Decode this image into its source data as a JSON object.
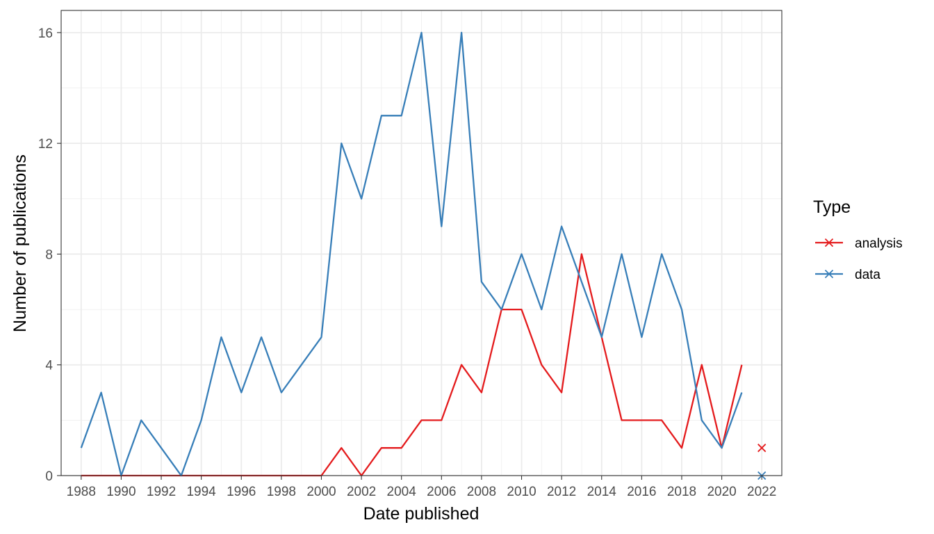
{
  "chart_data": {
    "type": "line",
    "xlabel": "Date published",
    "ylabel": "Number of publications",
    "xlim": [
      1987,
      2023
    ],
    "ylim": [
      0,
      16.8
    ],
    "x_ticks": [
      1988,
      1990,
      1992,
      1994,
      1996,
      1998,
      2000,
      2002,
      2004,
      2006,
      2008,
      2010,
      2012,
      2014,
      2016,
      2018,
      2020,
      2022
    ],
    "y_ticks": [
      0,
      4,
      8,
      12,
      16
    ],
    "grid": true,
    "legend": {
      "title": "Type",
      "placement": "right"
    },
    "series": [
      {
        "name": "analysis",
        "color": "#E41A1C",
        "marker": "x",
        "points": [
          [
            1988,
            0
          ],
          [
            1989,
            0
          ],
          [
            1990,
            0
          ],
          [
            1991,
            0
          ],
          [
            1992,
            0
          ],
          [
            1993,
            0
          ],
          [
            1994,
            0
          ],
          [
            1995,
            0
          ],
          [
            1996,
            0
          ],
          [
            1997,
            0
          ],
          [
            1998,
            0
          ],
          [
            1999,
            0
          ],
          [
            2000,
            0
          ],
          [
            2001,
            1
          ],
          [
            2002,
            0
          ],
          [
            2003,
            1
          ],
          [
            2004,
            1
          ],
          [
            2005,
            2
          ],
          [
            2006,
            2
          ],
          [
            2007,
            4
          ],
          [
            2008,
            3
          ],
          [
            2009,
            6
          ],
          [
            2010,
            6
          ],
          [
            2011,
            4
          ],
          [
            2012,
            3
          ],
          [
            2013,
            8
          ],
          [
            2014,
            5
          ],
          [
            2015,
            2
          ],
          [
            2016,
            2
          ],
          [
            2017,
            2
          ],
          [
            2018,
            1
          ],
          [
            2019,
            4
          ],
          [
            2020,
            1
          ],
          [
            2021,
            4
          ]
        ],
        "isolated_points": [
          [
            2022,
            1
          ]
        ]
      },
      {
        "name": "data",
        "color": "#377EB8",
        "marker": "x",
        "points": [
          [
            1988,
            1
          ],
          [
            1989,
            3
          ],
          [
            1990,
            0
          ],
          [
            1991,
            2
          ],
          [
            1992,
            1
          ],
          [
            1993,
            0
          ],
          [
            1994,
            2
          ],
          [
            1995,
            5
          ],
          [
            1996,
            3
          ],
          [
            1997,
            5
          ],
          [
            1998,
            3
          ],
          [
            1999,
            4
          ],
          [
            2000,
            5
          ],
          [
            2001,
            12
          ],
          [
            2002,
            10
          ],
          [
            2003,
            13
          ],
          [
            2004,
            13
          ],
          [
            2005,
            16
          ],
          [
            2006,
            9
          ],
          [
            2007,
            16
          ],
          [
            2008,
            7
          ],
          [
            2009,
            6
          ],
          [
            2010,
            8
          ],
          [
            2011,
            6
          ],
          [
            2012,
            9
          ],
          [
            2013,
            7
          ],
          [
            2014,
            5
          ],
          [
            2015,
            8
          ],
          [
            2016,
            5
          ],
          [
            2017,
            8
          ],
          [
            2018,
            6
          ],
          [
            2019,
            2
          ],
          [
            2020,
            1
          ],
          [
            2021,
            3
          ]
        ],
        "isolated_points": [
          [
            2022,
            0
          ]
        ]
      }
    ]
  }
}
